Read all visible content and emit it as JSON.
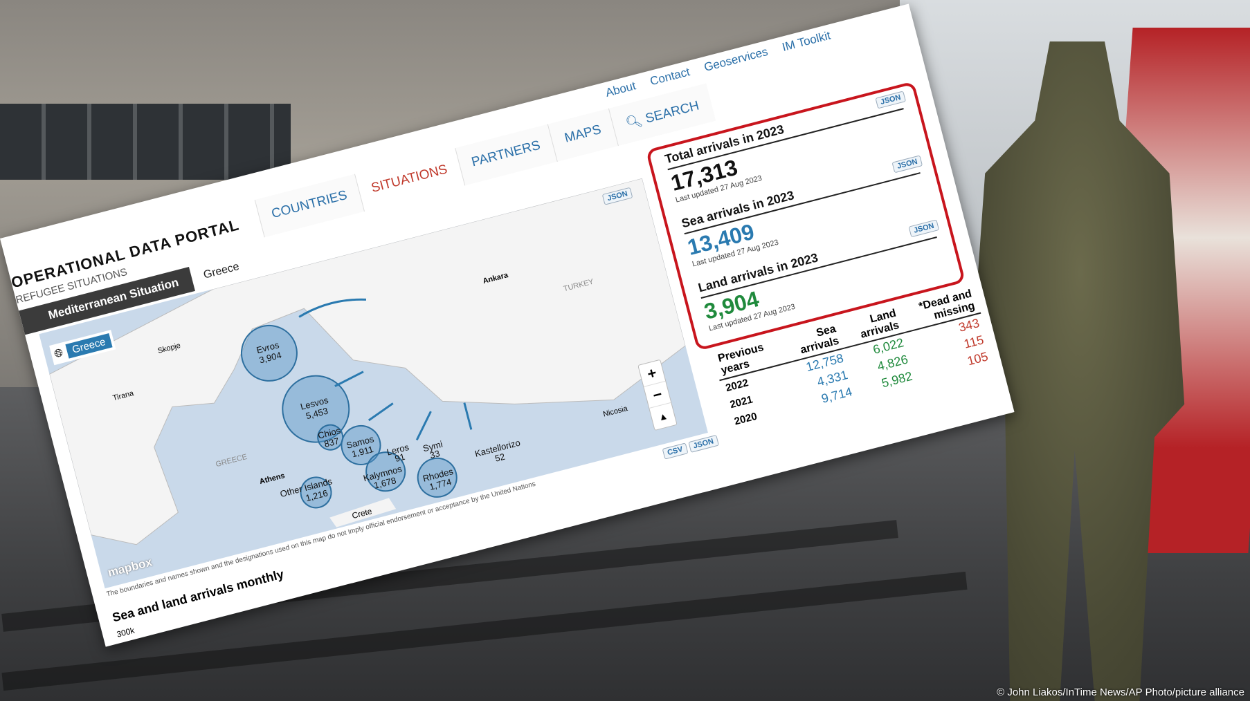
{
  "portal": {
    "title": "OPERATIONAL DATA PORTAL",
    "subtitle": "REFUGEE SITUATIONS"
  },
  "nav": {
    "tabs": [
      "COUNTRIES",
      "SITUATIONS",
      "PARTNERS",
      "MAPS",
      "SEARCH"
    ],
    "active": "SITUATIONS",
    "top_links": [
      "About",
      "Contact",
      "Geoservices",
      "IM Toolkit"
    ]
  },
  "breadcrumb": {
    "situation": "Mediterranean Situation",
    "country": "Greece"
  },
  "map": {
    "country_tag": "Greece",
    "json_label": "JSON",
    "labels": [
      "Skopje",
      "Tirana",
      "GREECE",
      "Athens",
      "Ankara",
      "TURKEY",
      "Crete",
      "Nicosia"
    ],
    "locations": [
      {
        "name": "Evros",
        "value": "3,904"
      },
      {
        "name": "Lesvos",
        "value": "5,453"
      },
      {
        "name": "Chios",
        "value": "837"
      },
      {
        "name": "Samos",
        "value": "1,911"
      },
      {
        "name": "Leros",
        "value": "91"
      },
      {
        "name": "Kalymnos",
        "value": "1,678"
      },
      {
        "name": "Symi",
        "value": "33"
      },
      {
        "name": "Rhodes",
        "value": "1,774"
      },
      {
        "name": "Other Islands",
        "value": "1,216"
      },
      {
        "name": "Kastellorizo",
        "value": "52"
      }
    ],
    "attribution": "mapbox",
    "disclaimer": "The boundaries and names shown and the designations used on this map do not imply official endorsement or acceptance by the United Nations"
  },
  "export": {
    "csv": "CSV",
    "json": "JSON"
  },
  "stats": [
    {
      "title": "Total arrivals in 2023",
      "value": "17,313",
      "updated": "Last updated 27 Aug 2023",
      "json": "JSON",
      "color": "#111111"
    },
    {
      "title": "Sea arrivals in 2023",
      "value": "13,409",
      "updated": "Last updated 27 Aug 2023",
      "json": "JSON",
      "color": "#2a7ab0"
    },
    {
      "title": "Land arrivals in 2023",
      "value": "3,904",
      "updated": "Last updated 27 Aug 2023",
      "json": "JSON",
      "color": "#1f8a3c"
    }
  ],
  "previous": {
    "headers": [
      "Previous years",
      "Sea arrivals",
      "Land arrivals",
      "*Dead and missing"
    ],
    "rows": [
      [
        "2022",
        "12,758",
        "6,022",
        "343"
      ],
      [
        "2021",
        "4,331",
        "4,826",
        "115"
      ],
      [
        "2020",
        "9,714",
        "5,982",
        "105"
      ]
    ]
  },
  "chart": {
    "title": "Sea and land arrivals monthly",
    "first_tick": "300k"
  },
  "photo_credit": "© John Liakos/InTime News/AP Photo/picture alliance"
}
